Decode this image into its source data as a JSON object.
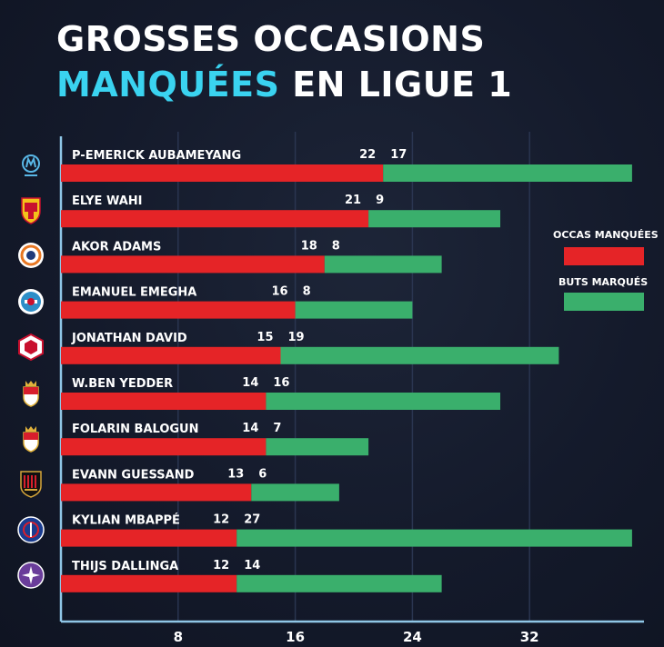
{
  "title_line1": "GROSSES OCCASIONS",
  "title_line2_highlight": "MANQUÉES",
  "title_line2_rest": " EN LIGUE 1",
  "colors": {
    "missed": "#e52427",
    "scored": "#3aaf6c",
    "highlight": "#3ad3f0",
    "grid": "#2a3550",
    "axis": "#8fc6e6"
  },
  "chart_data": {
    "type": "bar",
    "stacked": true,
    "orientation": "horizontal",
    "title": "GROSSES OCCASIONS MANQUÉES EN LIGUE 1",
    "categories": [
      "P-EMERICK AUBAMEYANG",
      "ELYE WAHI",
      "AKOR ADAMS",
      "EMANUEL EMEGHA",
      "JONATHAN DAVID",
      "W.BEN YEDDER",
      "FOLARIN BALOGUN",
      "EVANN GUESSAND",
      "KYLIAN MBAPPÉ",
      "THIJS DALLINGA"
    ],
    "series": [
      {
        "name": "OCCAS MANQUÉES",
        "values": [
          22,
          21,
          18,
          16,
          15,
          14,
          14,
          13,
          12,
          12
        ]
      },
      {
        "name": "BUTS MARQUÉS",
        "values": [
          17,
          9,
          8,
          8,
          19,
          16,
          7,
          6,
          27,
          14
        ]
      }
    ],
    "xticks": [
      "8",
      "16",
      "24",
      "32"
    ],
    "xlim": [
      0,
      40
    ],
    "legend_position": "right",
    "team_logos": [
      "marseille-icon",
      "lens-icon",
      "montpellier-icon",
      "strasbourg-icon",
      "lille-icon",
      "monaco-icon",
      "monaco-icon",
      "nice-icon",
      "psg-icon",
      "toulouse-icon"
    ]
  }
}
